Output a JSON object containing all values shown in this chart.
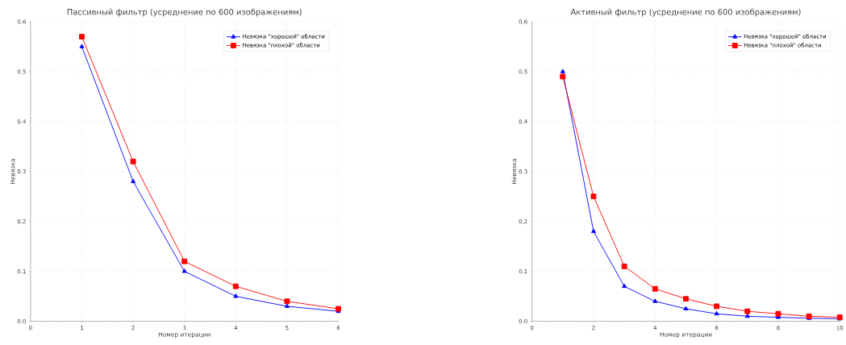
{
  "chart_data": [
    {
      "type": "line",
      "title": "Пассивный фильтр (усреднение по 600 изображениям)",
      "xlabel": "Номер итерации",
      "ylabel": "Невязка",
      "x": [
        1,
        2,
        3,
        4,
        5,
        6
      ],
      "series": [
        {
          "name": "Невязка \"хорошей\" области",
          "color": "#0000ff",
          "marker": "triangle",
          "values": [
            0.55,
            0.28,
            0.1,
            0.05,
            0.03,
            0.02
          ]
        },
        {
          "name": "Невязка \"плохой\" области",
          "color": "#ff0000",
          "marker": "square",
          "values": [
            0.57,
            0.32,
            0.12,
            0.07,
            0.04,
            0.025
          ]
        }
      ],
      "xlim": [
        0,
        6
      ],
      "ylim": [
        0,
        0.6
      ],
      "xticks": [
        0,
        1,
        2,
        3,
        4,
        5,
        6
      ],
      "yticks": [
        {
          "value": 0,
          "label": "0.0"
        },
        0.1,
        0.2,
        0.3,
        0.4,
        0.5,
        0.6
      ],
      "grid": true,
      "legend": "top right"
    },
    {
      "type": "line",
      "title": "Активный фильтр (усреднение по 600 изображениям)",
      "xlabel": "Номер итерации",
      "ylabel": "Невязка",
      "x": [
        1,
        2,
        3,
        4,
        5,
        6,
        7,
        8,
        9,
        10
      ],
      "series": [
        {
          "name": "Невязка \"хорошей\" области",
          "color": "#0000ff",
          "marker": "triangle",
          "values": [
            0.5,
            0.18,
            0.07,
            0.04,
            0.025,
            0.015,
            0.01,
            0.008,
            0.006,
            0.005
          ]
        },
        {
          "name": "Невязка \"плохой\" области",
          "color": "#ff0000",
          "marker": "square",
          "values": [
            0.49,
            0.25,
            0.11,
            0.065,
            0.045,
            0.03,
            0.02,
            0.015,
            0.01,
            0.008
          ]
        }
      ],
      "xlim": [
        0,
        10
      ],
      "ylim": [
        0,
        0.6
      ],
      "xticks": [
        0,
        2,
        4,
        6,
        8,
        10
      ],
      "yticks": [
        {
          "value": 0,
          "label": "0.0"
        },
        0.1,
        0.2,
        0.3,
        0.4,
        0.5,
        0.6
      ],
      "grid": true,
      "legend": "top right"
    }
  ]
}
